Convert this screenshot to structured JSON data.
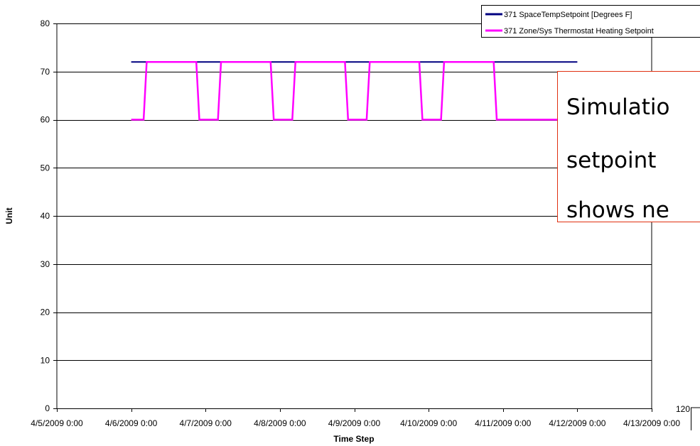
{
  "chart_data": {
    "type": "line",
    "xlabel": "Time Step",
    "ylabel": "Unit",
    "ylim": [
      0,
      80
    ],
    "y_ticks": [
      0,
      10,
      20,
      30,
      40,
      50,
      60,
      70,
      80
    ],
    "x_tick_labels": [
      "4/5/2009 0:00",
      "4/6/2009 0:00",
      "4/7/2009 0:00",
      "4/8/2009 0:00",
      "4/9/2009 0:00",
      "4/10/2009 0:00",
      "4/11/2009 0:00",
      "4/12/2009 0:00",
      "4/13/2009 0:00"
    ],
    "x_range": [
      "4/5/2009 0:00",
      "4/13/2009 0:00"
    ],
    "grid": "horizontal",
    "legend_position": "top-right",
    "series": [
      {
        "name": "371 SpaceTempSetpoint [Degrees F]",
        "color": "#000080",
        "x": [
          "4/6/2009 0:00",
          "4/12/2009 0:00"
        ],
        "y": [
          72,
          72
        ]
      },
      {
        "name": "371 Zone/Sys Thermostat Heating Setpoint",
        "color": "#FF00FF",
        "x": [
          "4/6/2009 0:00",
          "4/6/2009 4:00",
          "4/6/2009 5:00",
          "4/6/2009 21:00",
          "4/6/2009 22:00",
          "4/7/2009 4:00",
          "4/7/2009 5:00",
          "4/7/2009 21:00",
          "4/7/2009 22:00",
          "4/8/2009 4:00",
          "4/8/2009 5:00",
          "4/8/2009 21:00",
          "4/8/2009 22:00",
          "4/9/2009 4:00",
          "4/9/2009 5:00",
          "4/9/2009 21:00",
          "4/9/2009 22:00",
          "4/10/2009 4:00",
          "4/10/2009 5:00",
          "4/10/2009 21:00",
          "4/10/2009 22:00",
          "4/12/2009 0:00"
        ],
        "y": [
          60,
          60,
          72,
          72,
          60,
          60,
          72,
          72,
          60,
          60,
          72,
          72,
          60,
          60,
          72,
          72,
          60,
          60,
          72,
          72,
          60,
          60
        ]
      }
    ],
    "annotation": {
      "lines": [
        "Simulatio",
        "setpoint",
        "shows ne"
      ],
      "border_color": "#E03010"
    },
    "stray_labels": [
      "120",
      "1"
    ]
  }
}
